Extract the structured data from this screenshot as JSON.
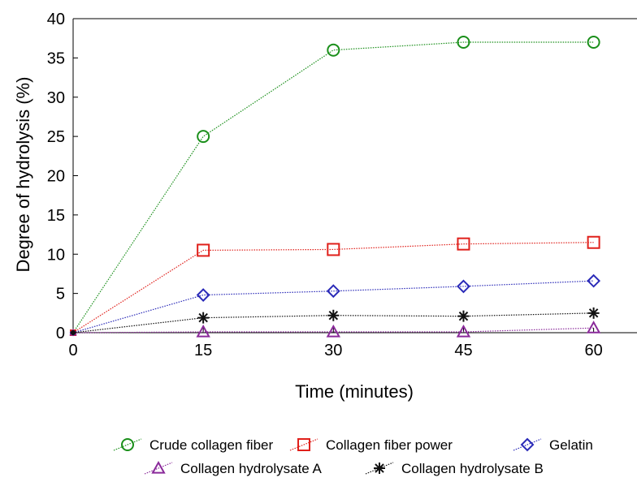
{
  "chart_data": {
    "type": "line",
    "title": "",
    "xlabel": "Time (minutes)",
    "ylabel": "Degree of hydrolysis (%)",
    "xlim": [
      0,
      65
    ],
    "ylim": [
      0,
      40
    ],
    "x_ticks": [
      0,
      15,
      30,
      45,
      60
    ],
    "y_ticks": [
      0,
      5,
      10,
      15,
      20,
      25,
      30,
      35,
      40
    ],
    "x": [
      0,
      15,
      30,
      45,
      60
    ],
    "grid": false,
    "legend_position": "bottom",
    "series": [
      {
        "name": "Crude collagen fiber",
        "values": [
          0,
          25,
          36,
          37,
          37
        ],
        "color": "#1a8f1a",
        "marker": "circle"
      },
      {
        "name": "Collagen fiber power",
        "values": [
          0,
          10.5,
          10.6,
          11.3,
          11.5
        ],
        "color": "#e0201b",
        "marker": "square"
      },
      {
        "name": "Gelatin",
        "values": [
          0,
          4.8,
          5.3,
          5.9,
          6.6
        ],
        "color": "#2a2ab8",
        "marker": "diamond"
      },
      {
        "name": "Collagen hydrolysate A",
        "values": [
          0,
          0.1,
          0.1,
          0.1,
          0.6
        ],
        "color": "#8a2a9a",
        "marker": "triangle"
      },
      {
        "name": "Collagen hydrolysate B",
        "values": [
          0,
          1.9,
          2.2,
          2.1,
          2.5
        ],
        "color": "#111111",
        "marker": "asterisk"
      }
    ]
  }
}
